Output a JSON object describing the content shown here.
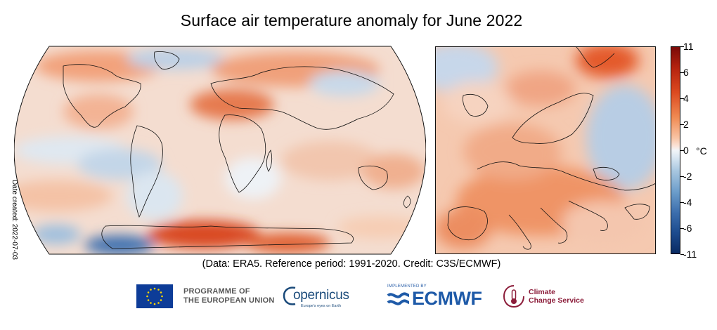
{
  "title": "Surface air temperature anomaly for June 2022",
  "date_created": "Date created: 2022-07-03",
  "caption": "(Data: ERA5.  Reference period: 1991-2020.  Credit: C3S/ECMWF)",
  "colorbar": {
    "unit": "°C",
    "ticks": [
      "11",
      "6",
      "4",
      "2",
      "0",
      "-2",
      "-4",
      "-6",
      "-11"
    ],
    "colors": {
      "max": "#7a0a08",
      "warm": "#dc4a20",
      "neutral": "#f2f5f8",
      "cool": "#6d9ecb",
      "min": "#0a2b63"
    }
  },
  "maps": {
    "world": {
      "projection": "Robinson",
      "coastline_color": "#000000"
    },
    "europe": {
      "coastline_color": "#000000"
    }
  },
  "logos": {
    "eu": {
      "line1": "PROGRAMME OF",
      "line2": "THE EUROPEAN UNION",
      "flag_color": "#0d3c98",
      "star_color": "#ffd700"
    },
    "copernicus": {
      "name": "opernicus",
      "tagline": "Europe's eyes on Earth",
      "color": "#1a4a7a"
    },
    "ecmwf": {
      "implemented_by": "IMPLEMENTED BY",
      "name": "ECMWF",
      "color": "#1e5aa8"
    },
    "c3s": {
      "line1": "Climate",
      "line2": "Change Service",
      "color": "#8c1d3a"
    }
  }
}
